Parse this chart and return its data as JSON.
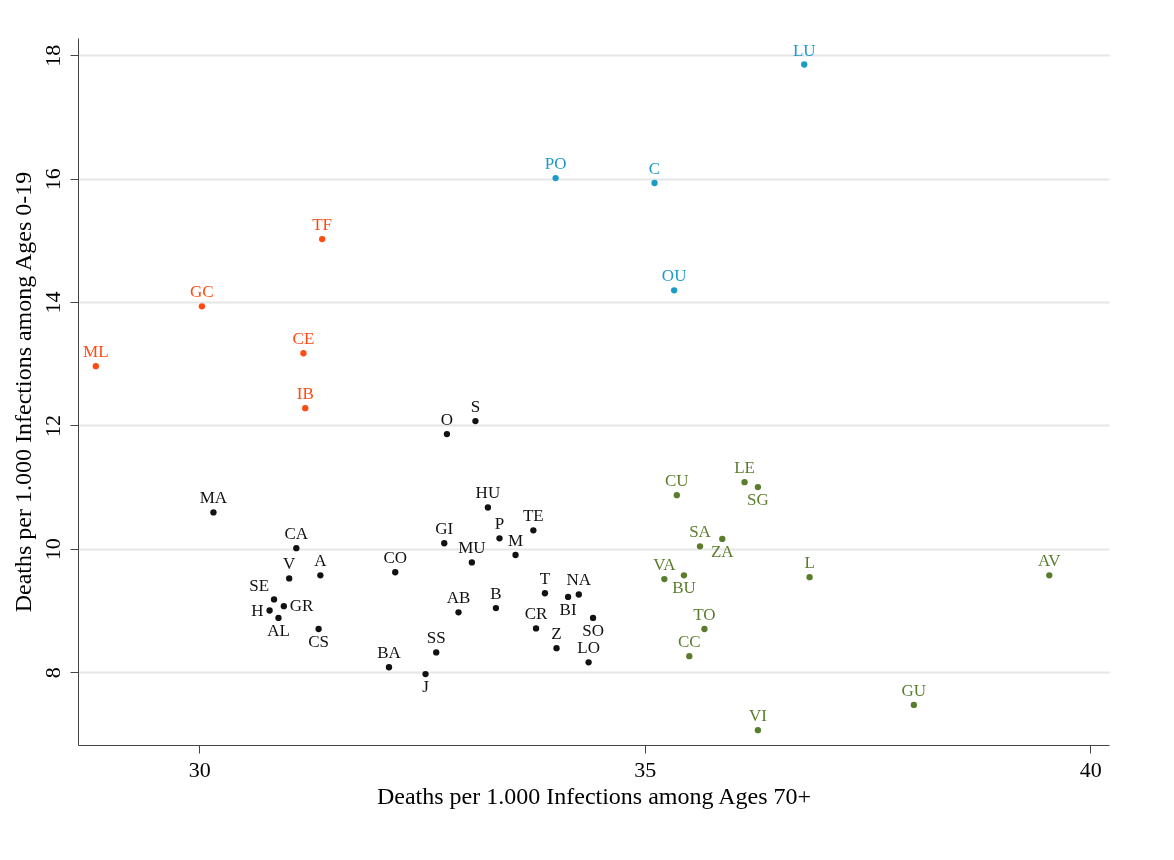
{
  "chart_data": {
    "type": "scatter",
    "xlabel": "Deaths per 1.000 Infections among Ages 70+",
    "ylabel": "Deaths per 1.000 Infections among Ages 0-19",
    "xlim": [
      28.64,
      40.21
    ],
    "ylim": [
      6.82,
      18.28
    ],
    "xticks": [
      30,
      35,
      40
    ],
    "yticks": [
      8,
      10,
      12,
      14,
      16,
      18
    ],
    "grid": "y",
    "marker": "circle",
    "series": [
      {
        "color": "#ff4a12",
        "x": [
          28.84,
          30.03,
          31.38,
          31.17,
          31.19
        ],
        "values": [
          12.96,
          13.93,
          15.02,
          13.17,
          12.28
        ],
        "value_labels": [
          "ML",
          "GC",
          "TF",
          "CE",
          "IB"
        ]
      },
      {
        "color": "#1b9bc8",
        "x": [
          36.79,
          34.0,
          35.11,
          35.33
        ],
        "values": [
          17.85,
          16.01,
          15.93,
          14.19
        ],
        "value_labels": [
          "LU",
          "PO",
          "C",
          "OU"
        ]
      },
      {
        "color": "#111111",
        "x": [
          32.78,
          33.1,
          30.16,
          33.24,
          31.09,
          32.75,
          33.37,
          33.75,
          33.06,
          33.55,
          32.2,
          31.01,
          31.36,
          30.84,
          30.95,
          30.79,
          30.89,
          31.34,
          33.88,
          34.14,
          34.26,
          32.91,
          33.33,
          34.42,
          33.78,
          34.01,
          34.37,
          32.66,
          32.13,
          32.54
        ],
        "values": [
          11.86,
          12.07,
          10.59,
          10.67,
          10.01,
          10.09,
          10.17,
          10.3,
          9.78,
          9.9,
          9.62,
          9.52,
          9.57,
          9.18,
          9.07,
          9.0,
          8.88,
          8.7,
          9.28,
          9.22,
          9.26,
          8.97,
          9.04,
          8.88,
          8.71,
          8.39,
          8.16,
          8.32,
          8.08,
          7.97
        ],
        "value_labels": [
          "O",
          "S",
          "MA",
          "HU",
          "CA",
          "GI",
          "P",
          "TE",
          "MU",
          "M",
          "CO",
          "V",
          "A",
          "SE",
          "GR",
          "H",
          "AL",
          "CS",
          "T",
          "BI",
          "NA",
          "AB",
          "B",
          "SO",
          "CR",
          "Z",
          "LO",
          "SS",
          "BA",
          "J"
        ]
      },
      {
        "color": "#5a7d2c",
        "x": [
          35.36,
          36.12,
          36.27,
          35.62,
          35.87,
          35.22,
          35.44,
          36.85,
          39.54,
          35.67,
          35.5,
          38.02,
          36.27
        ],
        "values": [
          10.87,
          11.08,
          11.0,
          10.04,
          10.16,
          9.51,
          9.57,
          9.54,
          9.57,
          8.7,
          8.26,
          7.47,
          7.06
        ],
        "value_labels": [
          "CU",
          "LE",
          "SG",
          "SA",
          "ZA",
          "VA",
          "BU",
          "L",
          "AV",
          "TO",
          "CC",
          "GU",
          "VI"
        ]
      }
    ]
  }
}
